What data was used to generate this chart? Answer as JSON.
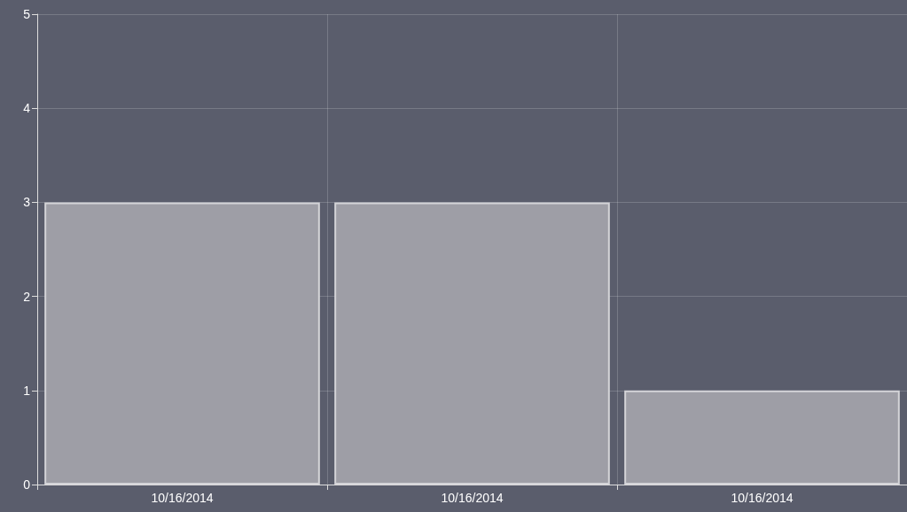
{
  "chart_data": {
    "type": "bar",
    "categories": [
      "10/16/2014",
      "10/16/2014",
      "10/16/2014"
    ],
    "series": [
      {
        "color": "#9e9ea6",
        "values": [
          3,
          3,
          1
        ]
      }
    ],
    "ylim": [
      0,
      5
    ],
    "yticks": [
      0,
      1,
      2,
      3,
      4,
      5
    ],
    "grid": true
  }
}
